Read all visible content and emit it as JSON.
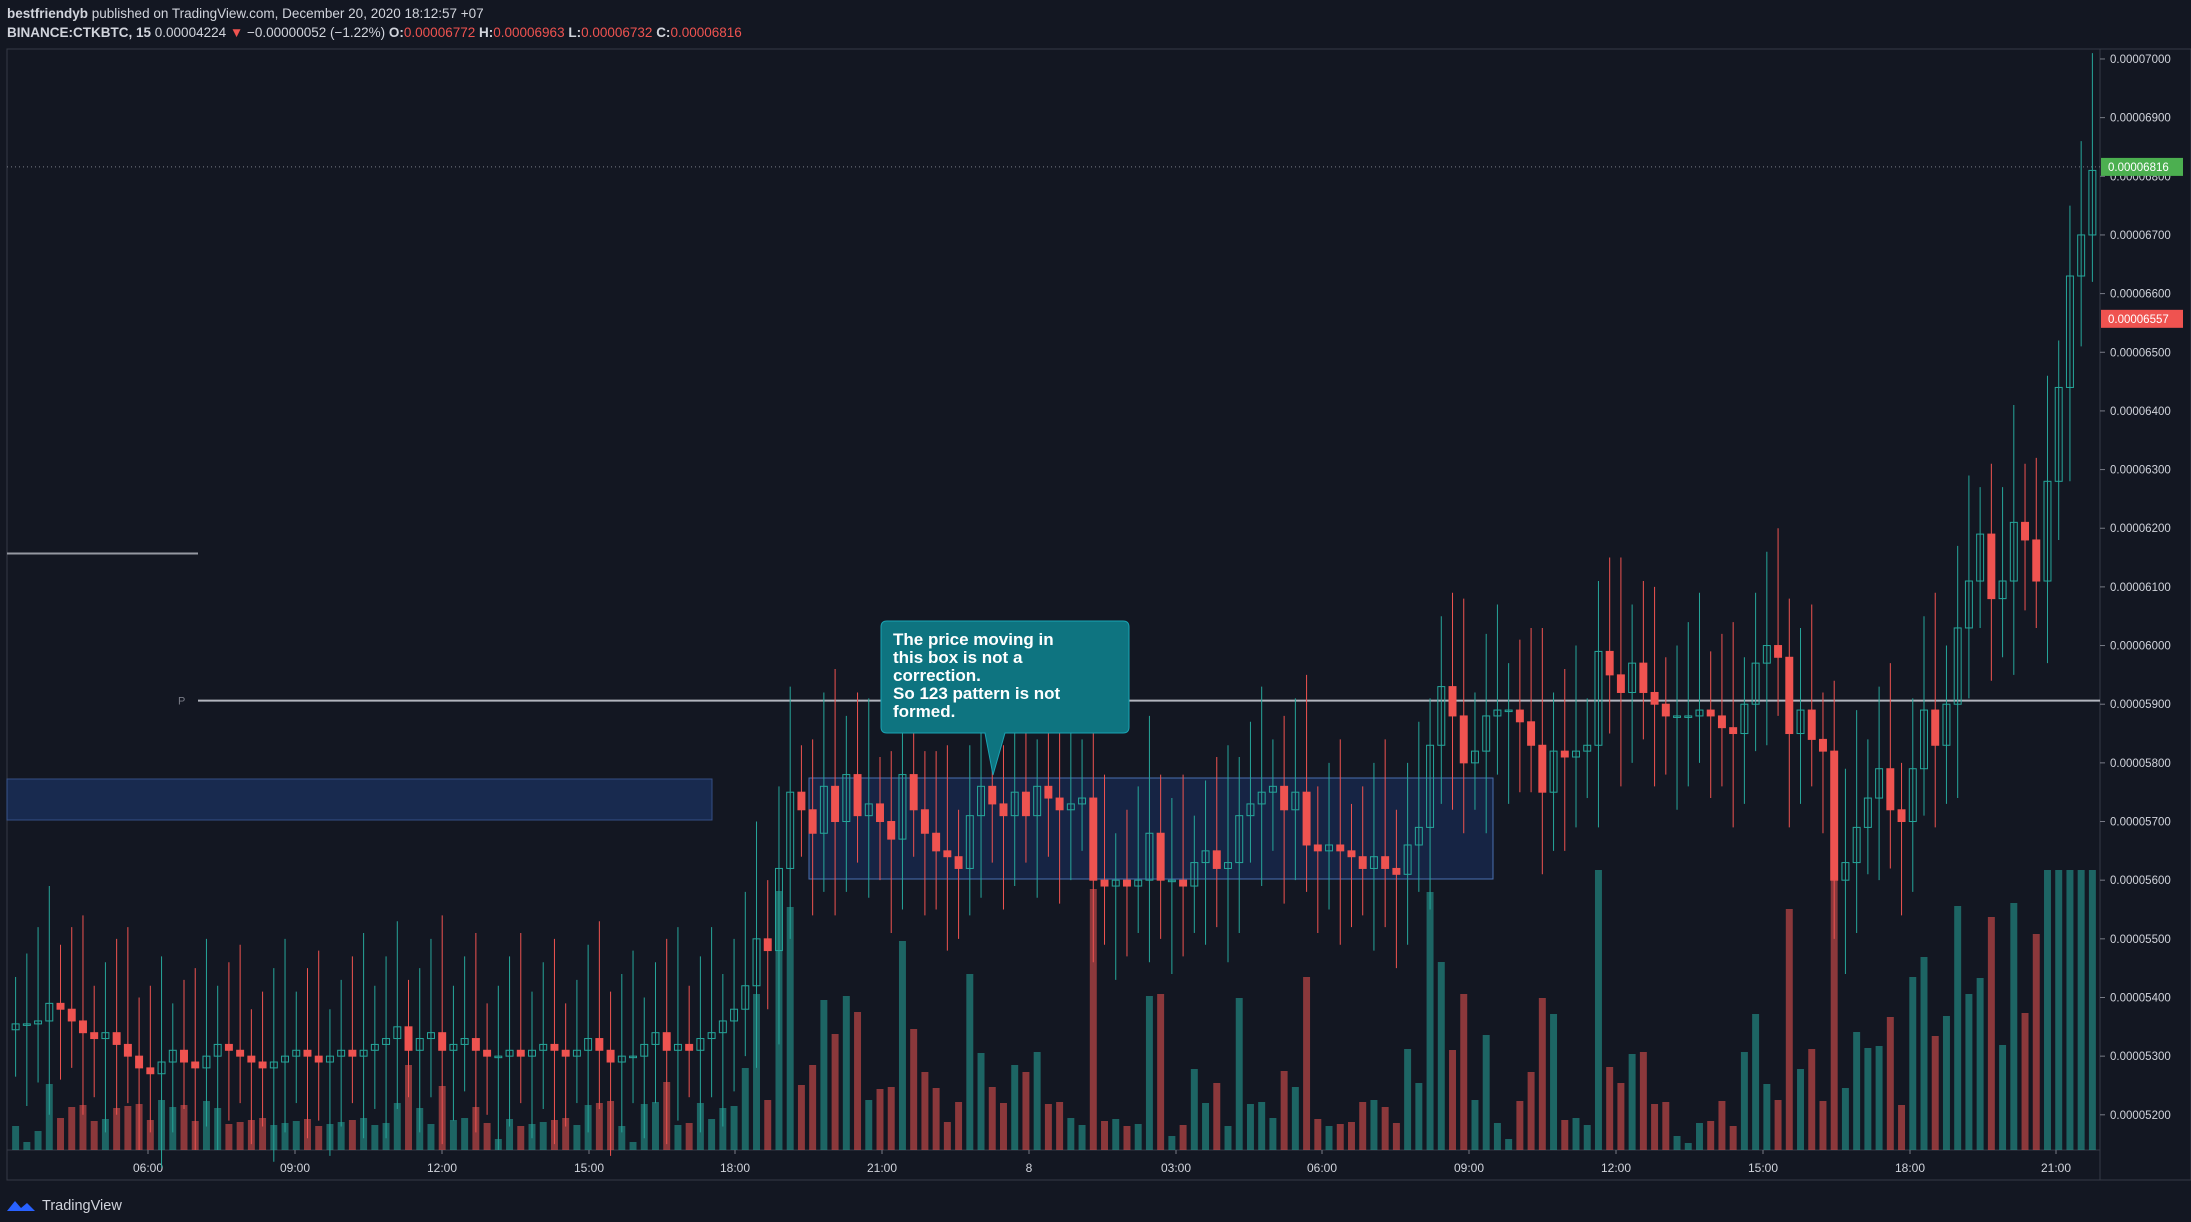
{
  "header": {
    "author": "bestfriendyb",
    "published": "published on TradingView.com, December 20, 2020 18:12:57 +07",
    "symbol": "BINANCE:CTKBTC, 15",
    "last": "0.00004224",
    "change": "−0.00000052 (−1.22%)",
    "o_label": "O:",
    "o": "0.00006772",
    "h_label": "H:",
    "h": "0.00006963",
    "l_label": "L:",
    "l": "0.00006732",
    "c_label": "C:",
    "c": "0.00006816"
  },
  "footer": {
    "brand": "TradingView"
  },
  "colors": {
    "background": "#131722",
    "up": "#26a69a",
    "down": "#ef5350",
    "grid": "#2a2e39",
    "text": "#d1d4dc",
    "box": "#1e3a6e"
  },
  "chart_data": {
    "type": "candlestick",
    "symbol": "BINANCE:CTKBTC",
    "interval": "15",
    "x_ticks": [
      "06:00",
      "09:00",
      "12:00",
      "15:00",
      "18:00",
      "21:00",
      "8",
      "03:00",
      "06:00",
      "09:00",
      "12:00",
      "15:00",
      "18:00",
      "21:00"
    ],
    "y_ticks": [
      "0.00005200",
      "0.00005300",
      "0.00005400",
      "0.00005500",
      "0.00005600",
      "0.00005700",
      "0.00005800",
      "0.00005900",
      "0.00006000",
      "0.00006100",
      "0.00006200",
      "0.00006300",
      "0.00006400",
      "0.00006500",
      "0.00006600",
      "0.00006700",
      "0.00006800",
      "0.00006900",
      "0.00007000"
    ],
    "ylim": [
      5.14e-05,
      7.017e-05
    ],
    "last_price_label": "0.00006816",
    "secondary_price_label": "0.00006557",
    "pivot_label": "P",
    "pivot_level": 5.906e-05,
    "resistance_level": 6.157e-05,
    "annotation": {
      "lines": [
        "The price moving in",
        "this box is not a",
        "correction.",
        "So 123 pattern is not",
        "formed."
      ]
    },
    "closes": [
      5.355e-05,
      5.355e-05,
      5.36e-05,
      5.39e-05,
      5.38e-05,
      5.36e-05,
      5.34e-05,
      5.33e-05,
      5.34e-05,
      5.32e-05,
      5.3e-05,
      5.28e-05,
      5.27e-05,
      5.29e-05,
      5.31e-05,
      5.29e-05,
      5.28e-05,
      5.3e-05,
      5.32e-05,
      5.31e-05,
      5.3e-05,
      5.29e-05,
      5.28e-05,
      5.29e-05,
      5.3e-05,
      5.31e-05,
      5.3e-05,
      5.29e-05,
      5.3e-05,
      5.31e-05,
      5.3e-05,
      5.31e-05,
      5.32e-05,
      5.33e-05,
      5.35e-05,
      5.31e-05,
      5.33e-05,
      5.34e-05,
      5.31e-05,
      5.32e-05,
      5.33e-05,
      5.31e-05,
      5.3e-05,
      5.3e-05,
      5.31e-05,
      5.3e-05,
      5.31e-05,
      5.32e-05,
      5.31e-05,
      5.3e-05,
      5.31e-05,
      5.33e-05,
      5.31e-05,
      5.29e-05,
      5.3e-05,
      5.3e-05,
      5.32e-05,
      5.34e-05,
      5.31e-05,
      5.32e-05,
      5.31e-05,
      5.33e-05,
      5.34e-05,
      5.36e-05,
      5.38e-05,
      5.42e-05,
      5.5e-05,
      5.48e-05,
      5.62e-05,
      5.75e-05,
      5.72e-05,
      5.68e-05,
      5.76e-05,
      5.7e-05,
      5.78e-05,
      5.71e-05,
      5.73e-05,
      5.7e-05,
      5.67e-05,
      5.78e-05,
      5.72e-05,
      5.68e-05,
      5.65e-05,
      5.64e-05,
      5.62e-05,
      5.71e-05,
      5.76e-05,
      5.73e-05,
      5.71e-05,
      5.75e-05,
      5.71e-05,
      5.76e-05,
      5.74e-05,
      5.72e-05,
      5.73e-05,
      5.74e-05,
      5.6e-05,
      5.59e-05,
      5.6e-05,
      5.59e-05,
      5.6e-05,
      5.68e-05,
      5.6e-05,
      5.6e-05,
      5.59e-05,
      5.63e-05,
      5.65e-05,
      5.62e-05,
      5.63e-05,
      5.71e-05,
      5.73e-05,
      5.75e-05,
      5.76e-05,
      5.72e-05,
      5.75e-05,
      5.66e-05,
      5.65e-05,
      5.66e-05,
      5.65e-05,
      5.64e-05,
      5.62e-05,
      5.64e-05,
      5.62e-05,
      5.61e-05,
      5.66e-05,
      5.69e-05,
      5.83e-05,
      5.93e-05,
      5.88e-05,
      5.8e-05,
      5.82e-05,
      5.88e-05,
      5.89e-05,
      5.89e-05,
      5.87e-05,
      5.83e-05,
      5.75e-05,
      5.82e-05,
      5.81e-05,
      5.82e-05,
      5.83e-05,
      5.99e-05,
      5.95e-05,
      5.92e-05,
      5.97e-05,
      5.92e-05,
      5.9e-05,
      5.88e-05,
      5.88e-05,
      5.88e-05,
      5.89e-05,
      5.88e-05,
      5.86e-05,
      5.85e-05,
      5.9e-05,
      5.97e-05,
      6e-05,
      5.98e-05,
      5.85e-05,
      5.89e-05,
      5.84e-05,
      5.82e-05,
      5.6e-05,
      5.63e-05,
      5.69e-05,
      5.74e-05,
      5.79e-05,
      5.72e-05,
      5.7e-05,
      5.79e-05,
      5.89e-05,
      5.83e-05,
      5.9e-05,
      6.03e-05,
      6.11e-05,
      6.19e-05,
      6.08e-05,
      6.11e-05,
      6.21e-05,
      6.18e-05,
      6.11e-05,
      6.28e-05,
      6.44e-05,
      6.63e-05,
      6.7e-05,
      6.81e-05
    ]
  }
}
